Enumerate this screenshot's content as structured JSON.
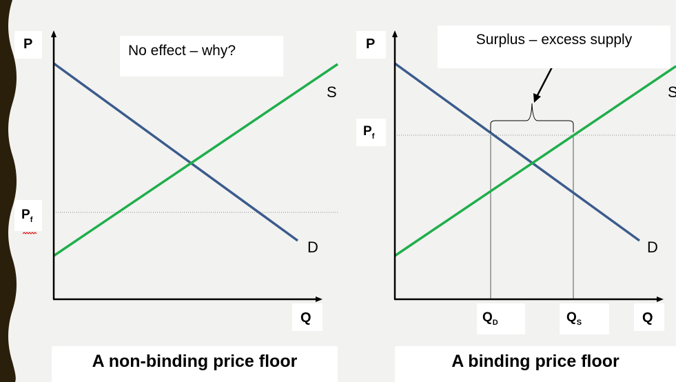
{
  "colors": {
    "background": "#f2f2f0",
    "demand_line": "#3a5b8c",
    "supply_line": "#1fae4b",
    "axes": "#000000",
    "reference_line": "#8a8a8a",
    "left_border": "#2a1f0a"
  },
  "left_panel": {
    "y_axis_label": "P",
    "x_axis_label": "Q",
    "note": "No effect – why?",
    "supply_label": "S",
    "demand_label": "D",
    "price_floor_label": "P",
    "price_floor_sub": "f",
    "caption": "A non-binding price floor"
  },
  "right_panel": {
    "y_axis_label": "P",
    "x_axis_label": "Q",
    "note": "Surplus – excess supply",
    "supply_label": "S",
    "demand_label": "D",
    "price_floor_label": "P",
    "price_floor_sub": "f",
    "qd_label": "Q",
    "qd_sub": "D",
    "qs_label": "Q",
    "qs_sub": "S",
    "caption": "A binding price floor"
  }
}
